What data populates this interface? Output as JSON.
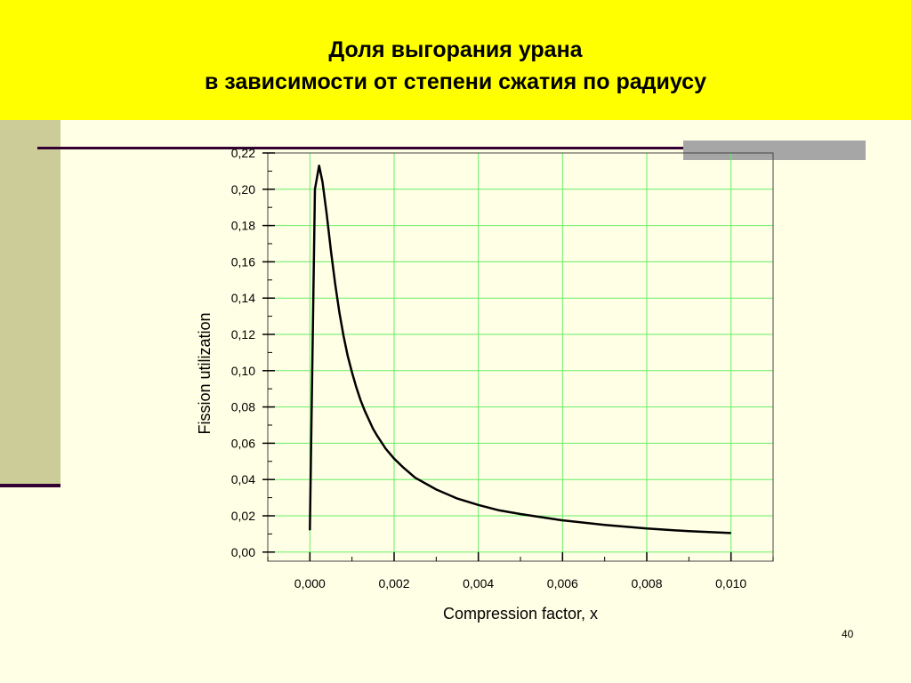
{
  "slide": {
    "title_line1": "Доля выгорания урана",
    "title_line2": "в зависимости от степени сжатия по радиусу",
    "page_number": "40",
    "colors": {
      "banner": "#ffff00",
      "background": "#ffffe5",
      "grid": "#66ee66",
      "line": "#000000"
    }
  },
  "chart_data": {
    "type": "line",
    "title": "",
    "xlabel": "Compression factor, x",
    "ylabel": "Fission utilization",
    "xlim": [
      -0.001,
      0.011
    ],
    "ylim": [
      -0.005,
      0.22
    ],
    "grid": true,
    "x_ticks": [
      "0,000",
      "0,002",
      "0,004",
      "0,006",
      "0,008",
      "0,010"
    ],
    "y_ticks": [
      "0,00",
      "0,02",
      "0,04",
      "0,06",
      "0,08",
      "0,10",
      "0,12",
      "0,14",
      "0,16",
      "0,18",
      "0,20",
      "0,22"
    ],
    "series": [
      {
        "x": [
          0.0,
          0.00012,
          0.00022,
          0.0003,
          0.0004,
          0.0005,
          0.0006,
          0.0007,
          0.0008,
          0.0009,
          0.001,
          0.0011,
          0.0012,
          0.0013,
          0.0014,
          0.0015,
          0.0016,
          0.0018,
          0.002,
          0.0022,
          0.0025,
          0.003,
          0.0035,
          0.004,
          0.0045,
          0.005,
          0.006,
          0.007,
          0.008,
          0.009,
          0.01
        ],
        "y": [
          0.012,
          0.2,
          0.213,
          0.204,
          0.186,
          0.166,
          0.148,
          0.132,
          0.119,
          0.108,
          0.099,
          0.091,
          0.084,
          0.078,
          0.073,
          0.068,
          0.064,
          0.057,
          0.0515,
          0.047,
          0.041,
          0.0345,
          0.0295,
          0.026,
          0.023,
          0.021,
          0.0175,
          0.015,
          0.013,
          0.0115,
          0.0105
        ]
      }
    ]
  }
}
